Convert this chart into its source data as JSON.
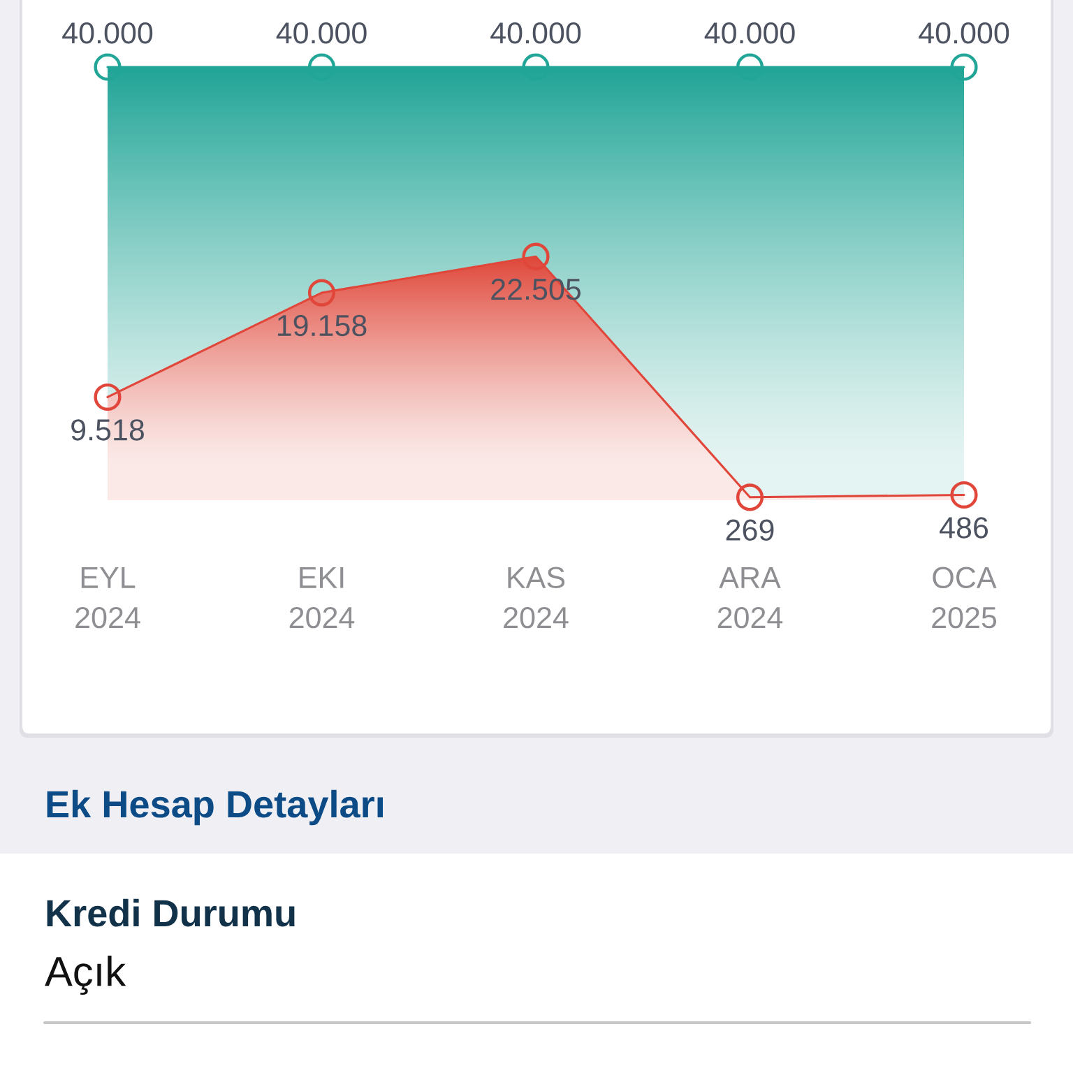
{
  "chart_data": {
    "type": "area",
    "categories": [
      "EYL\n2024",
      "EKI\n2024",
      "KAS\n2024",
      "ARA\n2024",
      "OCA\n2025"
    ],
    "series": [
      {
        "color": "#20a597",
        "values": [
          40000,
          40000,
          40000,
          40000,
          40000
        ],
        "value_labels": [
          "40.000",
          "40.000",
          "40.000",
          "40.000",
          "40.000"
        ]
      },
      {
        "color": "#e0473a",
        "values": [
          9518,
          19158,
          22505,
          269,
          486
        ],
        "value_labels": [
          "9.518",
          "19.158",
          "22.505",
          "269",
          "486"
        ]
      }
    ],
    "marker": "circle",
    "line_style": "solid",
    "annotations": [
      "Ek Hesap Detayları",
      "Kredi Durumu",
      "Açık"
    ]
  }
}
